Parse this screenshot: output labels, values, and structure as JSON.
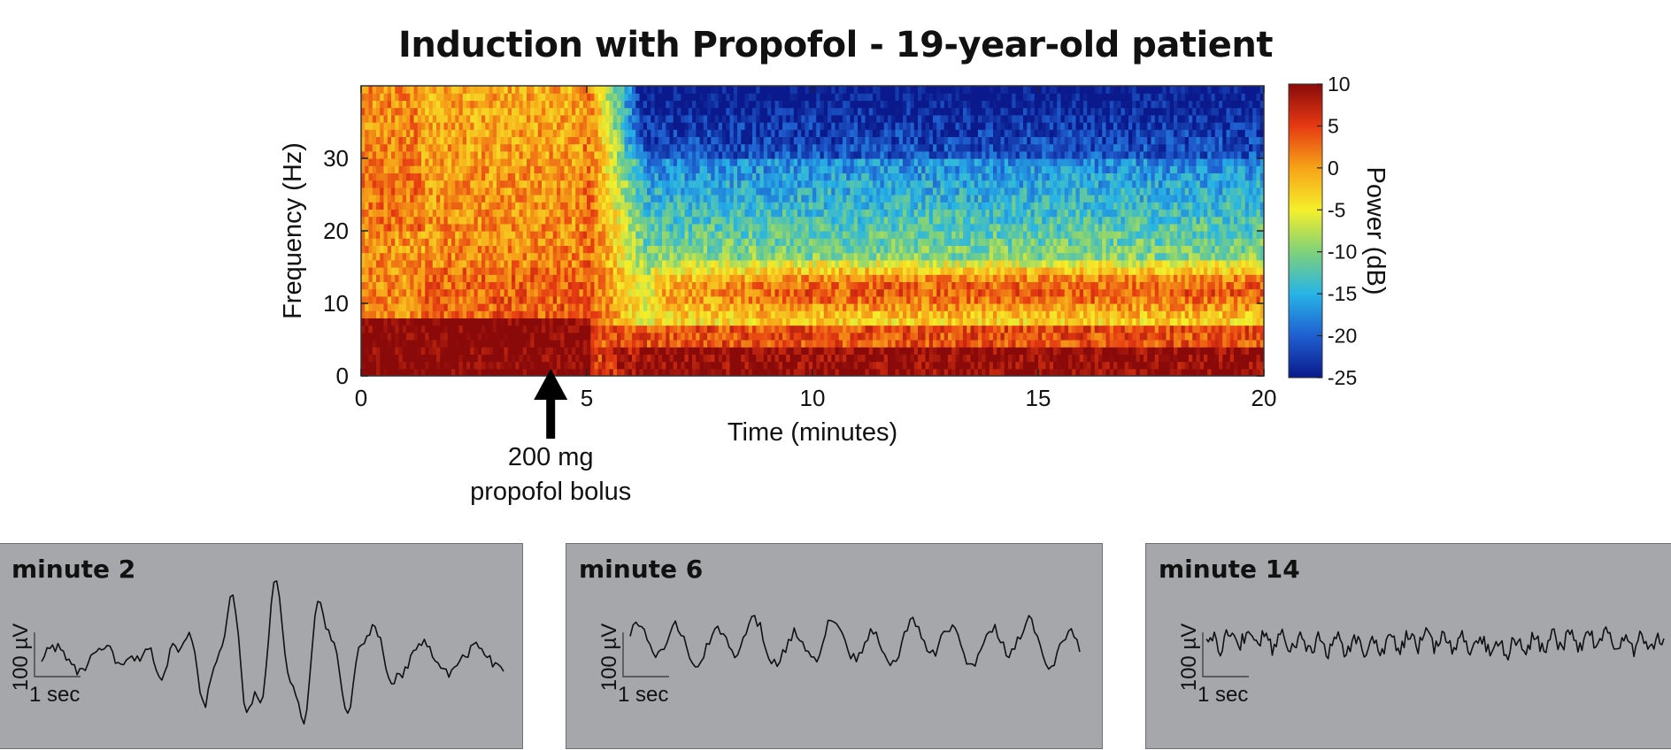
{
  "chart_data": [
    {
      "type": "heatmap",
      "title": "Induction with Propofol - 19-year-old patient",
      "xlabel": "Time (minutes)",
      "ylabel": "Frequency (Hz)",
      "xlim": [
        0,
        20
      ],
      "ylim": [
        0,
        40
      ],
      "x_ticks": [
        "0",
        "5",
        "10",
        "15",
        "20"
      ],
      "y_ticks": [
        "0",
        "10",
        "20",
        "30"
      ],
      "colorbar": {
        "label": "Power (dB)",
        "range": [
          -25,
          10
        ],
        "ticks": [
          "10",
          "5",
          "0",
          "-5",
          "-10",
          "-15",
          "-20",
          "-25"
        ],
        "colormap": [
          "#0a1a8c",
          "#1f5fd0",
          "#27b4e6",
          "#7fd17a",
          "#f5ef2a",
          "#f6a318",
          "#e63a12",
          "#8a0a0a"
        ]
      },
      "annotation": {
        "x": 4.2,
        "lines": [
          "200 mg",
          "propofol bolus"
        ]
      }
    },
    {
      "type": "line",
      "title": "minute 2",
      "scale_bar": {
        "vertical": "100 µV",
        "horizontal": "1 sec"
      }
    },
    {
      "type": "line",
      "title": "minute 6",
      "scale_bar": {
        "vertical": "100 µV",
        "horizontal": "1 sec"
      }
    },
    {
      "type": "line",
      "title": "minute 14",
      "scale_bar": {
        "vertical": "100 µV",
        "horizontal": "1 sec"
      }
    }
  ]
}
